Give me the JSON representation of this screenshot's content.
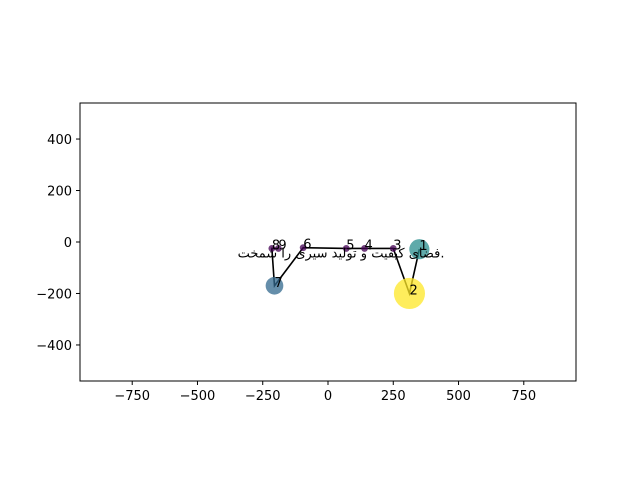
{
  "chart_data": {
    "type": "scatter",
    "title": "",
    "xlabel": "",
    "ylabel": "",
    "xlim": [
      -950,
      950
    ],
    "ylim": [
      -540,
      540
    ],
    "grid": false,
    "x_ticks": [
      -750,
      -500,
      -250,
      0,
      250,
      500,
      750
    ],
    "x_tick_labels": [
      "−750",
      "−500",
      "−250",
      "0",
      "250",
      "500",
      "750"
    ],
    "y_ticks": [
      400,
      200,
      0,
      -200,
      -400
    ],
    "y_tick_labels": [
      "400",
      "200",
      "0",
      "−200",
      "−400"
    ],
    "path_color": "#000000",
    "points": [
      {
        "label": "1",
        "x": 350,
        "y": -28,
        "size": 260,
        "color": "#2a8e8e",
        "alpha": 0.75
      },
      {
        "label": "2",
        "x": 312,
        "y": -200,
        "size": 620,
        "color": "#fde725",
        "alpha": 0.75
      },
      {
        "label": "3",
        "x": 250,
        "y": -25,
        "size": 30,
        "color": "#440154",
        "alpha": 0.75
      },
      {
        "label": "4",
        "x": 140,
        "y": -25,
        "size": 30,
        "color": "#440154",
        "alpha": 0.75
      },
      {
        "label": "5",
        "x": 70,
        "y": -25,
        "size": 30,
        "color": "#440154",
        "alpha": 0.75
      },
      {
        "label": "6",
        "x": -95,
        "y": -22,
        "size": 30,
        "color": "#440154",
        "alpha": 0.75
      },
      {
        "label": "7",
        "x": -205,
        "y": -170,
        "size": 200,
        "color": "#31688e",
        "alpha": 0.75
      },
      {
        "label": "8",
        "x": -215,
        "y": -25,
        "size": 30,
        "color": "#440154",
        "alpha": 0.75
      },
      {
        "label": "9",
        "x": -190,
        "y": -25,
        "size": 30,
        "color": "#440154",
        "alpha": 0.75
      }
    ],
    "annotation": {
      "text": "فضای کیفیت و تولید سیری را شمخت.",
      "x": 50,
      "y": -45
    }
  }
}
